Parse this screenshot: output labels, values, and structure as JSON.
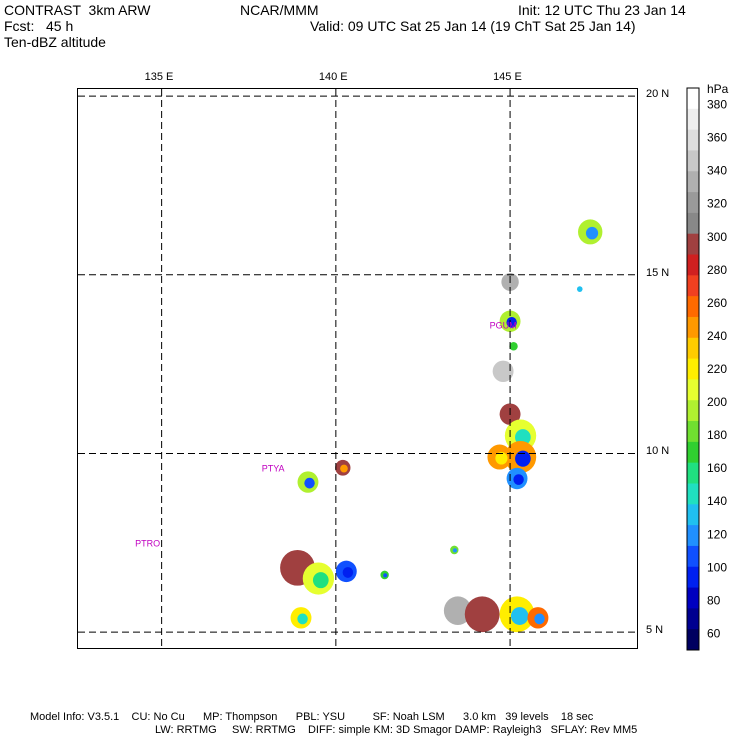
{
  "header": {
    "line1_left": "CONTRAST  3km ARW",
    "line1_mid": "NCAR/MMM",
    "line1_right": "Init: 12 UTC Thu 23 Jan 14",
    "line2_left": "Fcst:   45 h",
    "line2_right": "Valid: 09 UTC Sat 25 Jan 14 (19 ChT Sat 25 Jan 14)",
    "line3_left": "Ten-dBZ altitude"
  },
  "map": {
    "lon_labels": [
      {
        "value": 135,
        "text": "135 E"
      },
      {
        "value": 140,
        "text": "140 E"
      },
      {
        "value": 145,
        "text": "145 E"
      }
    ],
    "lat_labels": [
      {
        "value": 20,
        "text": "20 N"
      },
      {
        "value": 15,
        "text": "15 N"
      },
      {
        "value": 10,
        "text": "10 N"
      },
      {
        "value": 5,
        "text": "5 N"
      }
    ],
    "lon_range": [
      132.6,
      148.7
    ],
    "lat_range": [
      4.5,
      20.2
    ],
    "stations": [
      {
        "text": "PTRO",
        "lon": 134.6,
        "lat": 7.4
      },
      {
        "text": "PTYA",
        "lon": 138.2,
        "lat": 9.5
      },
      {
        "text": "PGUM",
        "lon": 144.8,
        "lat": 13.5
      }
    ],
    "echoes": [
      {
        "lon": 147.3,
        "lat": 16.2,
        "r": 0.35,
        "alt": 190,
        "core": 120
      },
      {
        "lon": 147.0,
        "lat": 14.6,
        "r": 0.08,
        "alt": 130,
        "core": 130
      },
      {
        "lon": 145.0,
        "lat": 14.8,
        "r": 0.25,
        "alt": 330,
        "core": 330
      },
      {
        "lon": 145.0,
        "lat": 13.7,
        "r": 0.3,
        "alt": 200,
        "core": 100
      },
      {
        "lon": 145.1,
        "lat": 13.0,
        "r": 0.12,
        "alt": 170,
        "core": 170
      },
      {
        "lon": 144.8,
        "lat": 12.3,
        "r": 0.3,
        "alt": 340,
        "core": 340
      },
      {
        "lon": 145.0,
        "lat": 11.1,
        "r": 0.3,
        "alt": 300,
        "core": 300
      },
      {
        "lon": 145.3,
        "lat": 10.5,
        "r": 0.45,
        "alt": 210,
        "core": 140
      },
      {
        "lon": 145.3,
        "lat": 9.9,
        "r": 0.45,
        "alt": 240,
        "core": 100
      },
      {
        "lon": 144.7,
        "lat": 9.9,
        "r": 0.35,
        "alt": 240,
        "core": 220
      },
      {
        "lon": 145.2,
        "lat": 9.3,
        "r": 0.3,
        "alt": 120,
        "core": 100
      },
      {
        "lon": 139.2,
        "lat": 9.2,
        "r": 0.3,
        "alt": 200,
        "core": 110
      },
      {
        "lon": 140.2,
        "lat": 9.6,
        "r": 0.22,
        "alt": 290,
        "core": 250
      },
      {
        "lon": 143.4,
        "lat": 7.3,
        "r": 0.12,
        "alt": 180,
        "core": 120
      },
      {
        "lon": 138.9,
        "lat": 6.8,
        "r": 0.5,
        "alt": 290,
        "core": 290
      },
      {
        "lon": 139.5,
        "lat": 6.5,
        "r": 0.45,
        "alt": 210,
        "core": 160
      },
      {
        "lon": 140.3,
        "lat": 6.7,
        "r": 0.3,
        "alt": 110,
        "core": 100
      },
      {
        "lon": 141.4,
        "lat": 6.6,
        "r": 0.12,
        "alt": 170,
        "core": 110
      },
      {
        "lon": 139.0,
        "lat": 5.4,
        "r": 0.3,
        "alt": 220,
        "core": 150
      },
      {
        "lon": 143.5,
        "lat": 5.6,
        "r": 0.4,
        "alt": 330,
        "core": 330
      },
      {
        "lon": 144.2,
        "lat": 5.5,
        "r": 0.5,
        "alt": 290,
        "core": 290
      },
      {
        "lon": 145.2,
        "lat": 5.5,
        "r": 0.5,
        "alt": 220,
        "core": 130
      },
      {
        "lon": 145.8,
        "lat": 5.4,
        "r": 0.3,
        "alt": 260,
        "core": 120
      }
    ]
  },
  "legend": {
    "unit": "hPa",
    "ticks": [
      "380",
      "360",
      "340",
      "320",
      "300",
      "280",
      "260",
      "240",
      "220",
      "200",
      "180",
      "160",
      "140",
      "120",
      "100",
      "80",
      "60"
    ],
    "colors": [
      "#ffffff",
      "#eeeeee",
      "#dddddd",
      "#c8c8c8",
      "#b0b0b0",
      "#9a9a9a",
      "#888888",
      "#a04040",
      "#d02020",
      "#f04020",
      "#ff6a00",
      "#ff9900",
      "#ffcc00",
      "#ffee00",
      "#e6ff30",
      "#b0f030",
      "#70e030",
      "#30d030",
      "#20e080",
      "#20e0c0",
      "#20c0f0",
      "#2090ff",
      "#1050ff",
      "#0020f0",
      "#0000c0",
      "#000090",
      "#000060"
    ]
  },
  "footer": {
    "line1": "Model Info: V3.5.1    CU: No Cu      MP: Thompson      PBL: YSU         SF: Noah LSM      3.0 km   39 levels    18 sec",
    "line2": "LW: RRTMG     SW: RRTMG    DIFF: simple KM: 3D Smagor DAMP: Rayleigh3   SFLAY: Rev MM5"
  }
}
